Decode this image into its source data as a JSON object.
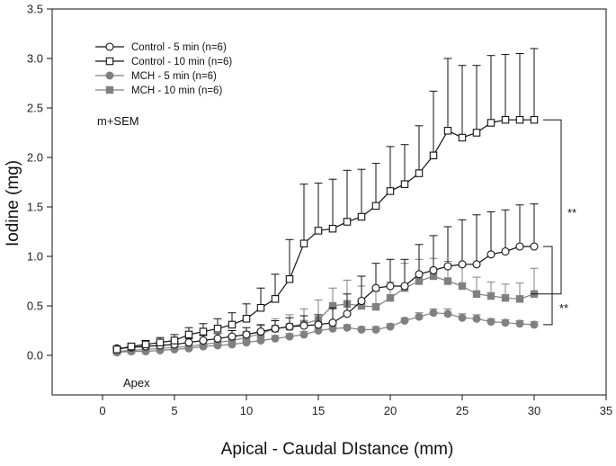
{
  "chart_data": {
    "type": "line",
    "title": "",
    "xlabel": "Apical - Caudal DIstance (mm)",
    "ylabel": "Iodine (mg)",
    "xlim": [
      -3.5,
      35
    ],
    "ylim": [
      -0.4,
      3.5
    ],
    "xticks": [
      0,
      5,
      10,
      15,
      20,
      25,
      30,
      35
    ],
    "yticks": [
      0.0,
      0.5,
      1.0,
      1.5,
      2.0,
      2.5,
      3.0,
      3.5
    ],
    "ytick_labels": [
      "0.0",
      "0.5",
      "1.0",
      "1.5",
      "2.0",
      "2.5",
      "3.0",
      "3.5"
    ],
    "legend_position": "top-left",
    "annotations": {
      "stat_label": "m+SEM",
      "start_label": "Apex",
      "significance_upper": "**",
      "significance_lower": "**"
    },
    "colors": {
      "control": "#111111",
      "mch": "#808080"
    },
    "x": [
      1,
      2,
      3,
      4,
      5,
      6,
      7,
      8,
      9,
      10,
      11,
      12,
      13,
      14,
      15,
      16,
      17,
      18,
      19,
      20,
      21,
      22,
      23,
      24,
      25,
      26,
      27,
      28,
      29,
      30
    ],
    "series": [
      {
        "name": "Control - 5 min (n=6)",
        "marker": "circle-open",
        "color": "#111111",
        "values": [
          0.07,
          0.08,
          0.09,
          0.1,
          0.11,
          0.13,
          0.15,
          0.17,
          0.19,
          0.21,
          0.24,
          0.27,
          0.29,
          0.3,
          0.31,
          0.33,
          0.42,
          0.55,
          0.68,
          0.7,
          0.7,
          0.82,
          0.86,
          0.9,
          0.92,
          0.92,
          1.02,
          1.05,
          1.1,
          1.1
        ],
        "sem": [
          0.02,
          0.02,
          0.02,
          0.03,
          0.03,
          0.04,
          0.05,
          0.05,
          0.06,
          0.07,
          0.07,
          0.08,
          0.09,
          0.1,
          0.1,
          0.15,
          0.2,
          0.25,
          0.25,
          0.27,
          0.27,
          0.3,
          0.35,
          0.4,
          0.45,
          0.5,
          0.43,
          0.42,
          0.42,
          0.43
        ]
      },
      {
        "name": "Control - 10 min (n=6)",
        "marker": "square-open",
        "color": "#111111",
        "values": [
          0.06,
          0.09,
          0.11,
          0.13,
          0.15,
          0.21,
          0.24,
          0.27,
          0.31,
          0.37,
          0.48,
          0.57,
          0.77,
          1.13,
          1.26,
          1.28,
          1.35,
          1.4,
          1.51,
          1.66,
          1.73,
          1.84,
          2.02,
          2.27,
          2.2,
          2.25,
          2.35,
          2.38,
          2.38,
          2.38
        ],
        "sem": [
          0.02,
          0.03,
          0.04,
          0.05,
          0.06,
          0.07,
          0.08,
          0.1,
          0.12,
          0.15,
          0.2,
          0.25,
          0.4,
          0.6,
          0.48,
          0.5,
          0.52,
          0.48,
          0.43,
          0.45,
          0.4,
          0.48,
          0.65,
          0.73,
          0.73,
          0.68,
          0.68,
          0.66,
          0.67,
          0.72
        ]
      },
      {
        "name": "MCH - 5 min (n=6)",
        "marker": "circle-filled",
        "color": "#808080",
        "values": [
          0.03,
          0.04,
          0.04,
          0.05,
          0.06,
          0.07,
          0.09,
          0.1,
          0.11,
          0.13,
          0.15,
          0.17,
          0.19,
          0.21,
          0.25,
          0.27,
          0.28,
          0.26,
          0.26,
          0.29,
          0.35,
          0.39,
          0.43,
          0.42,
          0.38,
          0.37,
          0.34,
          0.33,
          0.32,
          0.31
        ],
        "sem": [
          0.01,
          0.01,
          0.01,
          0.01,
          0.02,
          0.02,
          0.02,
          0.02,
          0.02,
          0.02,
          0.03,
          0.03,
          0.03,
          0.03,
          0.03,
          0.03,
          0.03,
          0.03,
          0.03,
          0.03,
          0.03,
          0.04,
          0.04,
          0.05,
          0.04,
          0.04,
          0.03,
          0.03,
          0.03,
          0.03
        ]
      },
      {
        "name": "MCH - 10 min (n=6)",
        "marker": "square-filled",
        "color": "#808080",
        "values": [
          0.04,
          0.05,
          0.06,
          0.07,
          0.08,
          0.09,
          0.11,
          0.13,
          0.15,
          0.18,
          0.22,
          0.27,
          0.29,
          0.32,
          0.36,
          0.5,
          0.52,
          0.5,
          0.49,
          0.58,
          0.68,
          0.75,
          0.8,
          0.75,
          0.7,
          0.62,
          0.6,
          0.58,
          0.57,
          0.62
        ],
        "sem": [
          0.01,
          0.01,
          0.02,
          0.02,
          0.02,
          0.03,
          0.03,
          0.04,
          0.05,
          0.06,
          0.08,
          0.1,
          0.12,
          0.15,
          0.2,
          0.18,
          0.24,
          0.2,
          0.16,
          0.16,
          0.25,
          0.22,
          0.18,
          0.2,
          0.2,
          0.17,
          0.14,
          0.14,
          0.16,
          0.26
        ]
      }
    ]
  }
}
